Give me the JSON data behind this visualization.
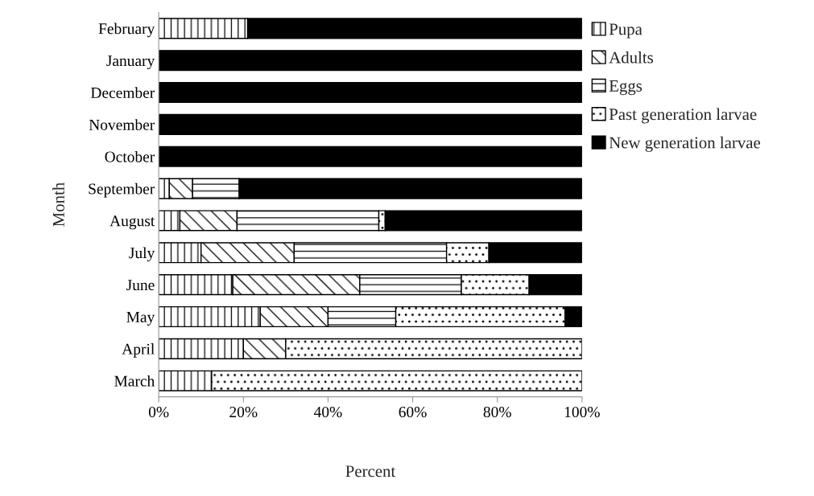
{
  "chart_data": {
    "type": "bar",
    "orientation": "horizontal",
    "stacked": true,
    "xlabel": "Percent",
    "ylabel": "Month",
    "categories": [
      "February",
      "January",
      "December",
      "November",
      "October",
      "September",
      "August",
      "July",
      "June",
      "May",
      "April",
      "March"
    ],
    "series": [
      {
        "name": "Pupa",
        "color": "#ffffff",
        "values": [
          21,
          0,
          0,
          0,
          0,
          2.5,
          5,
          10,
          17.5,
          24,
          20,
          12.5
        ]
      },
      {
        "name": "Adults",
        "color": "#ffffff",
        "values": [
          0,
          0,
          0,
          0,
          0,
          5.5,
          13.5,
          22,
          30,
          16,
          10,
          0
        ]
      },
      {
        "name": "Eggs",
        "color": "#ffffff",
        "values": [
          0,
          0,
          0,
          0,
          0,
          11,
          33.5,
          36,
          24,
          16,
          0,
          0
        ]
      },
      {
        "name": "Past generation larvae",
        "color": "#ffffff",
        "values": [
          0,
          0,
          0,
          0,
          0,
          0,
          1.5,
          10,
          16,
          40,
          70,
          87.5
        ]
      },
      {
        "name": "New generation larvae",
        "color": "#000000",
        "values": [
          79,
          100,
          100,
          100,
          100,
          81,
          46.5,
          22,
          12.5,
          4,
          0,
          0
        ]
      }
    ],
    "xlim": [
      0,
      100
    ],
    "xticks": [
      {
        "value": 0,
        "label": "0%"
      },
      {
        "value": 20,
        "label": "20%"
      },
      {
        "value": 40,
        "label": "40%"
      },
      {
        "value": 60,
        "label": "60%"
      },
      {
        "value": 80,
        "label": "80%"
      },
      {
        "value": 100,
        "label": "100%"
      }
    ],
    "grid": false,
    "legend": "top right"
  }
}
